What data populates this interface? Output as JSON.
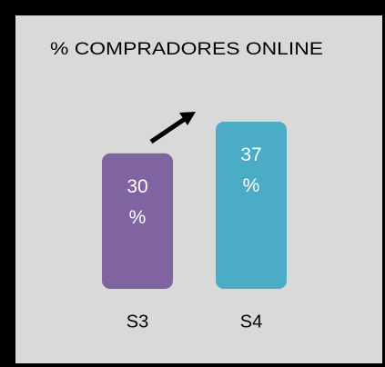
{
  "chart_data": {
    "type": "bar",
    "title": "% COMPRADORES ONLINE",
    "categories": [
      "S3",
      "S4"
    ],
    "values": [
      30,
      37
    ],
    "value_labels": [
      "30 %",
      "37 %"
    ],
    "colors": [
      "#8064a2",
      "#4bacc6"
    ]
  }
}
